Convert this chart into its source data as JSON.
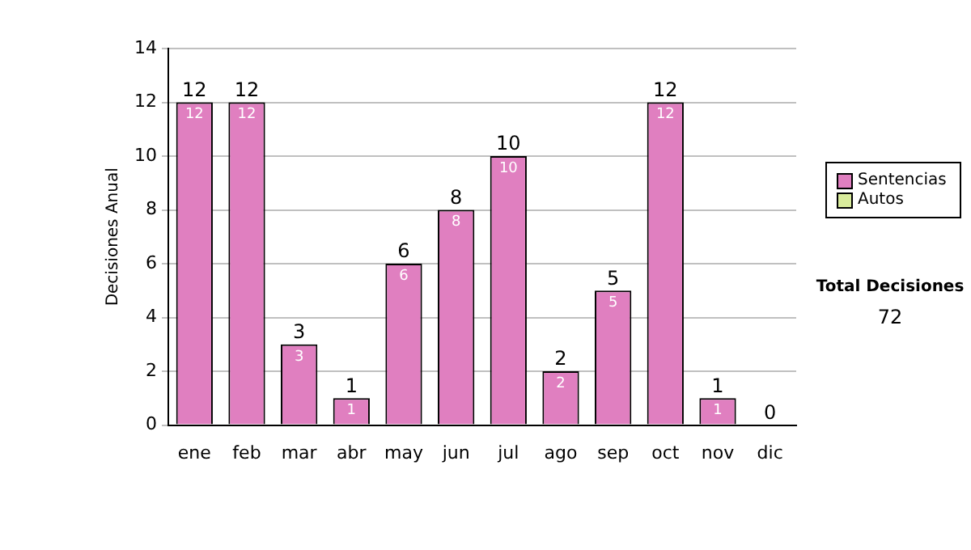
{
  "chart_data": {
    "type": "bar",
    "ylabel": "Decisiones Anual",
    "categories": [
      "ene",
      "feb",
      "mar",
      "abr",
      "may",
      "jun",
      "jul",
      "ago",
      "sep",
      "oct",
      "nov",
      "dic"
    ],
    "series": [
      {
        "name": "Sentencias",
        "color": "#e07fc0",
        "values": [
          12,
          12,
          3,
          1,
          6,
          8,
          10,
          2,
          5,
          12,
          1,
          0
        ],
        "value_labels": [
          "12",
          "12",
          "3",
          "1",
          "6",
          "8",
          "10",
          "2",
          "5",
          "12",
          "1",
          null
        ]
      },
      {
        "name": "Autos",
        "color": "#d9ec9c",
        "values": [
          0,
          0,
          0,
          0,
          0,
          0,
          0,
          0,
          0,
          0,
          0,
          0
        ]
      }
    ],
    "stacked": true,
    "totals": [
      "12",
      "12",
      "3",
      "1",
      "6",
      "8",
      "10",
      "2",
      "5",
      "12",
      "1",
      "0"
    ],
    "ylim": [
      0,
      14
    ],
    "yticks": [
      0,
      2,
      4,
      6,
      8,
      10,
      12,
      14
    ],
    "grid": "y",
    "legend": "right",
    "annotations": [
      "Total Decisiones",
      "72"
    ]
  }
}
